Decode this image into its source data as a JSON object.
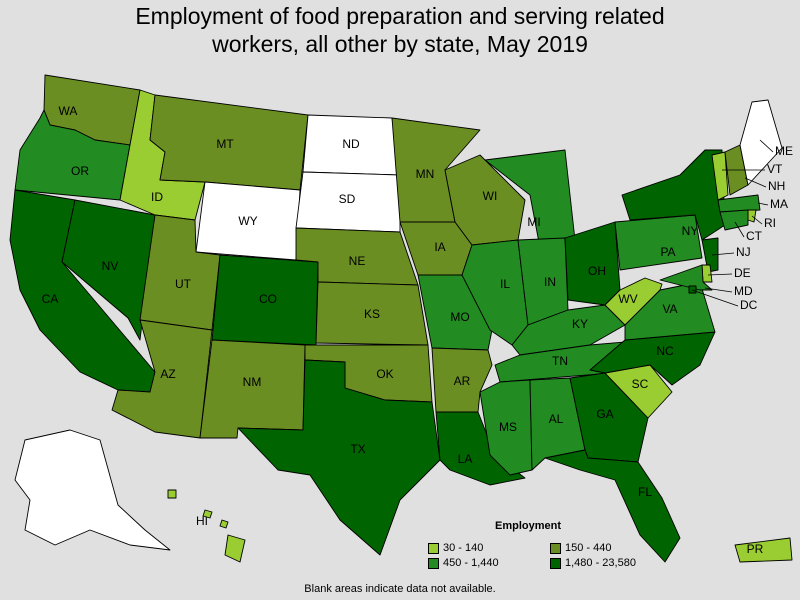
{
  "title_line1": "Employment of food preparation and serving related",
  "title_line2": "workers, all other by state, May 2019",
  "legend": {
    "title": "Employment",
    "bins": [
      {
        "label": "30 - 140",
        "color": "#9acd32"
      },
      {
        "label": "150 - 440",
        "color": "#6b8e23"
      },
      {
        "label": "450 - 1,440",
        "color": "#228b22"
      },
      {
        "label": "1,480 - 23,580",
        "color": "#006400"
      }
    ],
    "no_data_color": "#ffffff"
  },
  "footnote": "Blank areas indicate data not available.",
  "states": [
    {
      "abbr": "WA",
      "bin": 1
    },
    {
      "abbr": "OR",
      "bin": 2
    },
    {
      "abbr": "CA",
      "bin": 3
    },
    {
      "abbr": "NV",
      "bin": 3
    },
    {
      "abbr": "ID",
      "bin": 0
    },
    {
      "abbr": "MT",
      "bin": 1
    },
    {
      "abbr": "WY",
      "bin": -1
    },
    {
      "abbr": "UT",
      "bin": 1
    },
    {
      "abbr": "AZ",
      "bin": 1
    },
    {
      "abbr": "CO",
      "bin": 3
    },
    {
      "abbr": "NM",
      "bin": 1
    },
    {
      "abbr": "ND",
      "bin": -1
    },
    {
      "abbr": "SD",
      "bin": -1
    },
    {
      "abbr": "NE",
      "bin": 1
    },
    {
      "abbr": "KS",
      "bin": 1
    },
    {
      "abbr": "OK",
      "bin": 1
    },
    {
      "abbr": "TX",
      "bin": 3
    },
    {
      "abbr": "MN",
      "bin": 1
    },
    {
      "abbr": "IA",
      "bin": 1
    },
    {
      "abbr": "MO",
      "bin": 2
    },
    {
      "abbr": "AR",
      "bin": 1
    },
    {
      "abbr": "LA",
      "bin": 3
    },
    {
      "abbr": "WI",
      "bin": 1
    },
    {
      "abbr": "IL",
      "bin": 2
    },
    {
      "abbr": "MI",
      "bin": 2
    },
    {
      "abbr": "IN",
      "bin": 2
    },
    {
      "abbr": "OH",
      "bin": 3
    },
    {
      "abbr": "KY",
      "bin": 2
    },
    {
      "abbr": "TN",
      "bin": 2
    },
    {
      "abbr": "MS",
      "bin": 2
    },
    {
      "abbr": "AL",
      "bin": 2
    },
    {
      "abbr": "GA",
      "bin": 3
    },
    {
      "abbr": "FL",
      "bin": 3
    },
    {
      "abbr": "SC",
      "bin": 0
    },
    {
      "abbr": "NC",
      "bin": 3
    },
    {
      "abbr": "VA",
      "bin": 2
    },
    {
      "abbr": "WV",
      "bin": 0
    },
    {
      "abbr": "PA",
      "bin": 2
    },
    {
      "abbr": "NY",
      "bin": 3
    },
    {
      "abbr": "VT",
      "bin": 0
    },
    {
      "abbr": "NH",
      "bin": 1
    },
    {
      "abbr": "ME",
      "bin": -1
    },
    {
      "abbr": "MA",
      "bin": 2
    },
    {
      "abbr": "RI",
      "bin": 0
    },
    {
      "abbr": "CT",
      "bin": 2
    },
    {
      "abbr": "NJ",
      "bin": 3
    },
    {
      "abbr": "DE",
      "bin": 0
    },
    {
      "abbr": "MD",
      "bin": 2
    },
    {
      "abbr": "DC",
      "bin": 3
    },
    {
      "abbr": "AK",
      "bin": -1
    },
    {
      "abbr": "HI",
      "bin": 0
    },
    {
      "abbr": "PR",
      "bin": 0
    }
  ]
}
